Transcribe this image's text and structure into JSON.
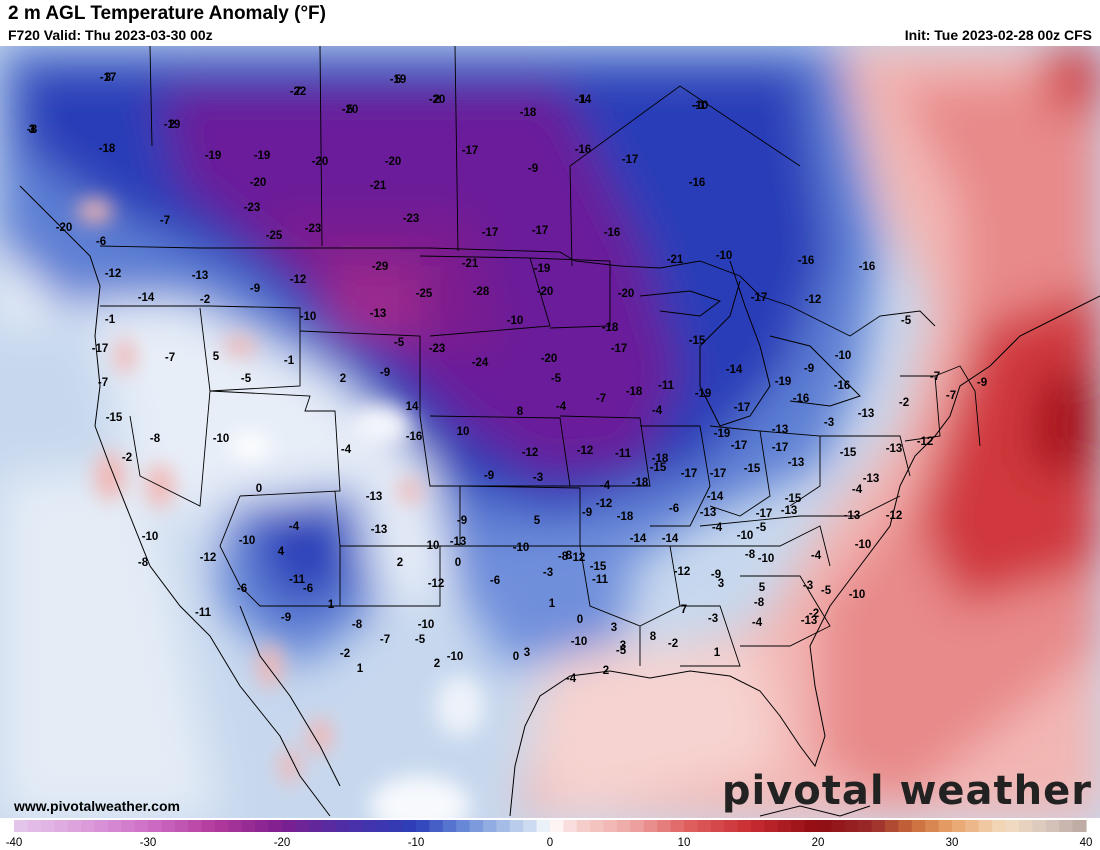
{
  "header": {
    "title": "2 m AGL Temperature Anomaly (°F)",
    "valid": "F720 Valid: Thu 2023-03-30 00z",
    "init": "Init: Tue 2023-02-28 00z CFS"
  },
  "footer": {
    "site": "www.pivotalweather.com",
    "brand": "pivotal weather"
  },
  "colorbar": {
    "ticks": [
      "-40",
      "-30",
      "-20",
      "-10",
      "0",
      "10",
      "20",
      "30",
      "40"
    ]
  },
  "colors": {
    "magenta": "#b86ac0",
    "purple": "#6a1c9a",
    "deep_blue": "#2c3eb8",
    "mid_blue": "#5d7fd4",
    "light_blue": "#b9cde9",
    "white": "#ffffff",
    "light_red": "#f2b6b3",
    "mid_red": "#e06363",
    "deep_red": "#b8151c"
  },
  "values": [
    {
      "t": "-17"
    },
    {
      "t": "-8"
    },
    {
      "t": "-22"
    },
    {
      "t": "-19"
    },
    {
      "t": "-20"
    },
    {
      "t": "-20"
    },
    {
      "t": "-14"
    },
    {
      "t": "-10"
    },
    {
      "t": "-19"
    },
    {
      "t": "-18"
    },
    {
      "t": "-18"
    },
    {
      "t": "-19"
    },
    {
      "t": "-19"
    },
    {
      "t": "-20"
    },
    {
      "t": "-20"
    },
    {
      "t": "-17"
    },
    {
      "t": "-16"
    },
    {
      "t": "-17"
    },
    {
      "t": "-9"
    },
    {
      "t": "-20"
    },
    {
      "t": "-21"
    },
    {
      "t": "-16"
    },
    {
      "t": "-23"
    },
    {
      "t": "-23"
    },
    {
      "t": "-23"
    },
    {
      "t": "-17"
    },
    {
      "t": "-17"
    },
    {
      "t": "-16"
    },
    {
      "t": "-7"
    },
    {
      "t": "-25"
    },
    {
      "t": "-20"
    },
    {
      "t": "-6"
    },
    {
      "t": "-13"
    },
    {
      "t": "-9"
    },
    {
      "t": "-12"
    },
    {
      "t": "-29"
    },
    {
      "t": "-25"
    },
    {
      "t": "-21"
    },
    {
      "t": "-19"
    },
    {
      "t": "-21"
    },
    {
      "t": "-10"
    },
    {
      "t": "-16"
    },
    {
      "t": "-16"
    },
    {
      "t": "-12"
    },
    {
      "t": "-14"
    },
    {
      "t": "-2"
    },
    {
      "t": "-10"
    },
    {
      "t": "-13"
    },
    {
      "t": "-28"
    },
    {
      "t": "-20"
    },
    {
      "t": "-20"
    },
    {
      "t": "-17"
    },
    {
      "t": "-12"
    },
    {
      "t": "-5"
    },
    {
      "t": "-1"
    },
    {
      "t": "-10"
    },
    {
      "t": "-18"
    },
    {
      "t": "-17"
    },
    {
      "t": "-7"
    },
    {
      "t": "5"
    },
    {
      "t": "-1"
    },
    {
      "t": "-5"
    },
    {
      "t": "-23"
    },
    {
      "t": "-24"
    },
    {
      "t": "-20"
    },
    {
      "t": "-17"
    },
    {
      "t": "-15"
    },
    {
      "t": "-14"
    },
    {
      "t": "-9"
    },
    {
      "t": "-10"
    },
    {
      "t": "-7"
    },
    {
      "t": "-5"
    },
    {
      "t": "2"
    },
    {
      "t": "-9"
    },
    {
      "t": "-5"
    },
    {
      "t": "-11"
    },
    {
      "t": "-19"
    },
    {
      "t": "-16"
    },
    {
      "t": "-9"
    },
    {
      "t": "-7"
    },
    {
      "t": "-7"
    },
    {
      "t": "-2"
    },
    {
      "t": "14"
    },
    {
      "t": "8"
    },
    {
      "t": "-4"
    },
    {
      "t": "-7"
    },
    {
      "t": "-18"
    },
    {
      "t": "-19"
    },
    {
      "t": "-17"
    },
    {
      "t": "-16"
    },
    {
      "t": "-13"
    },
    {
      "t": "-15"
    },
    {
      "t": "-10"
    },
    {
      "t": "-8"
    },
    {
      "t": "-4"
    },
    {
      "t": "-13"
    },
    {
      "t": "-3"
    },
    {
      "t": "-4"
    },
    {
      "t": "-16"
    },
    {
      "t": "-12"
    },
    {
      "t": "-12"
    },
    {
      "t": "-11"
    },
    {
      "t": "-18"
    },
    {
      "t": "-19"
    },
    {
      "t": "-17"
    },
    {
      "t": "-17"
    },
    {
      "t": "-15"
    },
    {
      "t": "-13"
    },
    {
      "t": "-12"
    },
    {
      "t": "-2"
    },
    {
      "t": "10"
    },
    {
      "t": "-9"
    },
    {
      "t": "-3"
    },
    {
      "t": "-15"
    },
    {
      "t": "-17"
    },
    {
      "t": "-17"
    },
    {
      "t": "-15"
    },
    {
      "t": "-13"
    },
    {
      "t": "-13"
    },
    {
      "t": "-4"
    },
    {
      "t": "0"
    },
    {
      "t": "-4"
    },
    {
      "t": "-13"
    },
    {
      "t": "-18"
    },
    {
      "t": "-14"
    },
    {
      "t": "-17"
    },
    {
      "t": "-13"
    },
    {
      "t": "-15"
    },
    {
      "t": "-13"
    },
    {
      "t": "-9"
    },
    {
      "t": "5"
    },
    {
      "t": "-9"
    },
    {
      "t": "-18"
    },
    {
      "t": "-6"
    },
    {
      "t": "-13"
    },
    {
      "t": "-10"
    },
    {
      "t": "-12"
    },
    {
      "t": "-10"
    },
    {
      "t": "-4"
    },
    {
      "t": "-13"
    },
    {
      "t": "-12"
    },
    {
      "t": "-14"
    },
    {
      "t": "-14"
    },
    {
      "t": "-4"
    },
    {
      "t": "-5"
    },
    {
      "t": "-13"
    },
    {
      "t": "-10"
    },
    {
      "t": "-10"
    },
    {
      "t": "4"
    },
    {
      "t": "10"
    },
    {
      "t": "-10"
    },
    {
      "t": "-8"
    },
    {
      "t": "-12"
    },
    {
      "t": "-10"
    },
    {
      "t": "-4"
    },
    {
      "t": "-8"
    },
    {
      "t": "-12"
    },
    {
      "t": "-11"
    },
    {
      "t": "2"
    },
    {
      "t": "0"
    },
    {
      "t": "8"
    },
    {
      "t": "-15"
    },
    {
      "t": "-12"
    },
    {
      "t": "-9"
    },
    {
      "t": "-8"
    },
    {
      "t": "-3"
    },
    {
      "t": "-6"
    },
    {
      "t": "-6"
    },
    {
      "t": "1"
    },
    {
      "t": "-12"
    },
    {
      "t": "-6"
    },
    {
      "t": "-3"
    },
    {
      "t": "-11"
    },
    {
      "t": "-5"
    },
    {
      "t": "-2"
    },
    {
      "t": "3"
    },
    {
      "t": "5"
    },
    {
      "t": "-10"
    },
    {
      "t": "-11"
    },
    {
      "t": "-7"
    },
    {
      "t": "-10"
    },
    {
      "t": "1"
    },
    {
      "t": "0"
    },
    {
      "t": "3"
    },
    {
      "t": "7"
    },
    {
      "t": "-3"
    },
    {
      "t": "-8"
    },
    {
      "t": "-9"
    },
    {
      "t": "-8"
    },
    {
      "t": "-5"
    },
    {
      "t": "3"
    },
    {
      "t": "-10"
    },
    {
      "t": "-5"
    },
    {
      "t": "-2"
    },
    {
      "t": "1"
    },
    {
      "t": "-4"
    },
    {
      "t": "-13"
    },
    {
      "t": "-2"
    },
    {
      "t": "1"
    },
    {
      "t": "2"
    },
    {
      "t": "-10"
    },
    {
      "t": "0"
    },
    {
      "t": "-4"
    },
    {
      "t": "2"
    },
    {
      "t": "3"
    },
    {
      "t": "8"
    },
    {
      "t": "3"
    },
    {
      "t": "3"
    },
    {
      "t": "7"
    },
    {
      "t": "5"
    },
    {
      "t": "5"
    },
    {
      "t": "2"
    },
    {
      "t": "1"
    },
    {
      "t": "-1"
    },
    {
      "t": "2"
    }
  ]
}
